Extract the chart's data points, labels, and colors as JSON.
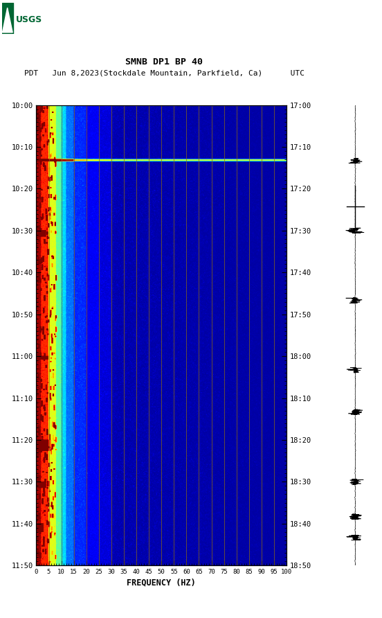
{
  "title_line1": "SMNB DP1 BP 40",
  "title_line2": "PDT   Jun 8,2023(Stockdale Mountain, Parkfield, Ca)      UTC",
  "xlabel": "FREQUENCY (HZ)",
  "freq_min": 0,
  "freq_max": 100,
  "freq_ticks": [
    0,
    5,
    10,
    15,
    20,
    25,
    30,
    35,
    40,
    45,
    50,
    55,
    60,
    65,
    70,
    75,
    80,
    85,
    90,
    95,
    100
  ],
  "time_ticks_pdt": [
    "10:00",
    "10:10",
    "10:20",
    "10:30",
    "10:40",
    "10:50",
    "11:00",
    "11:10",
    "11:20",
    "11:30",
    "11:40",
    "11:50"
  ],
  "time_ticks_utc": [
    "17:00",
    "17:10",
    "17:20",
    "17:30",
    "17:40",
    "17:50",
    "18:00",
    "18:10",
    "18:20",
    "18:30",
    "18:40",
    "18:50"
  ],
  "n_time": 660,
  "n_freq": 500,
  "vertical_line_color": "#8B6914",
  "usgs_green": "#006633"
}
